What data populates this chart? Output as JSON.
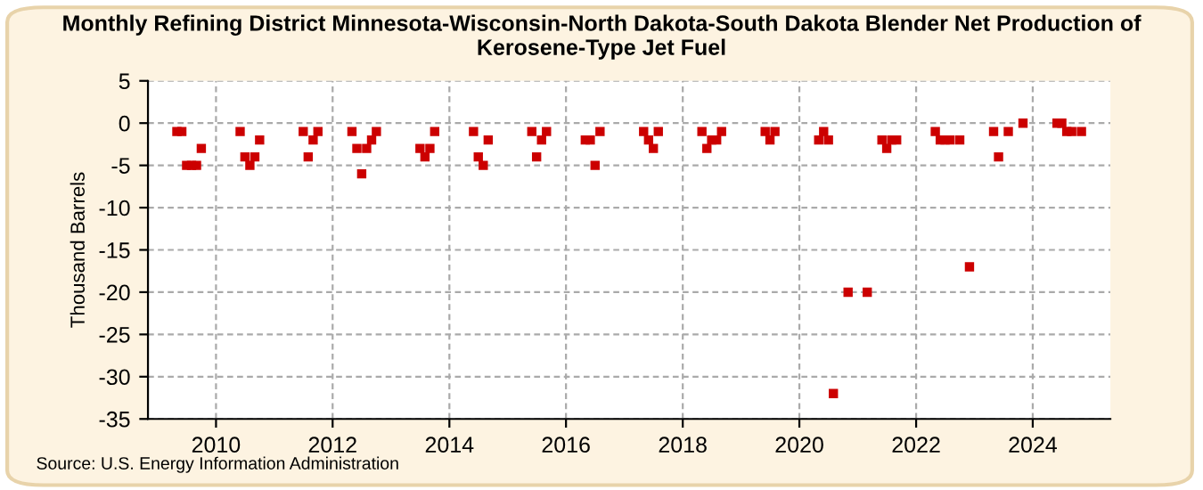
{
  "chart_data": {
    "type": "scatter",
    "title": "Monthly Refining District Minnesota-Wisconsin-North Dakota-South Dakota Blender Net Production of Kerosene-Type Jet Fuel",
    "ylabel": "Thousand Barrels",
    "annotations": [
      "Source: U.S. Energy Information Administration"
    ],
    "x": [
      "2009-05",
      "2009-06",
      "2009-07",
      "2009-08",
      "2009-09",
      "2009-10",
      "2010-06",
      "2010-07",
      "2010-08",
      "2010-09",
      "2010-10",
      "2011-07",
      "2011-08",
      "2011-09",
      "2011-10",
      "2012-05",
      "2012-06",
      "2012-07",
      "2012-08",
      "2012-09",
      "2012-10",
      "2013-07",
      "2013-08",
      "2013-09",
      "2013-10",
      "2014-06",
      "2014-07",
      "2014-08",
      "2014-09",
      "2015-06",
      "2015-07",
      "2015-08",
      "2015-09",
      "2016-05",
      "2016-06",
      "2016-07",
      "2016-08",
      "2017-05",
      "2017-06",
      "2017-07",
      "2017-08",
      "2018-05",
      "2018-06",
      "2018-07",
      "2018-08",
      "2018-09",
      "2019-06",
      "2019-07",
      "2019-08",
      "2020-05",
      "2020-06",
      "2020-07",
      "2020-08",
      "2020-11",
      "2021-03",
      "2021-06",
      "2021-07",
      "2021-08",
      "2021-09",
      "2022-05",
      "2022-06",
      "2022-07",
      "2022-08",
      "2022-10",
      "2022-12",
      "2023-05",
      "2023-06",
      "2023-08",
      "2023-11",
      "2024-06",
      "2024-07",
      "2024-08",
      "2024-09",
      "2024-11"
    ],
    "series": [
      {
        "color": "#cc0000",
        "values": [
          -1,
          -1,
          -5,
          -5,
          -5,
          -3,
          -1,
          -4,
          -5,
          -4,
          -2,
          -1,
          -4,
          -2,
          -1,
          -1,
          -3,
          -6,
          -3,
          -2,
          -1,
          -3,
          -4,
          -3,
          -1,
          -1,
          -4,
          -5,
          -2,
          -1,
          -4,
          -2,
          -1,
          -2,
          -2,
          -5,
          -1,
          -1,
          -2,
          -3,
          -1,
          -1,
          -3,
          -2,
          -2,
          -1,
          -1,
          -2,
          -1,
          -2,
          -1,
          -2,
          -32,
          -20,
          -20,
          -2,
          -3,
          -2,
          -2,
          -1,
          -2,
          -2,
          -2,
          -2,
          -17,
          -1,
          -4,
          -1,
          0,
          0,
          0,
          -1,
          -1,
          -1
        ]
      }
    ],
    "marker": "square",
    "xlim": [
      "2008-11",
      "2025-05"
    ],
    "xticks": [
      "2010",
      "2012",
      "2014",
      "2016",
      "2018",
      "2020",
      "2022",
      "2024"
    ],
    "ylim": [
      -35,
      5
    ],
    "yticks": [
      -35,
      -30,
      -25,
      -20,
      -15,
      -10,
      -5,
      0,
      5
    ],
    "grid": true,
    "legend": false
  }
}
